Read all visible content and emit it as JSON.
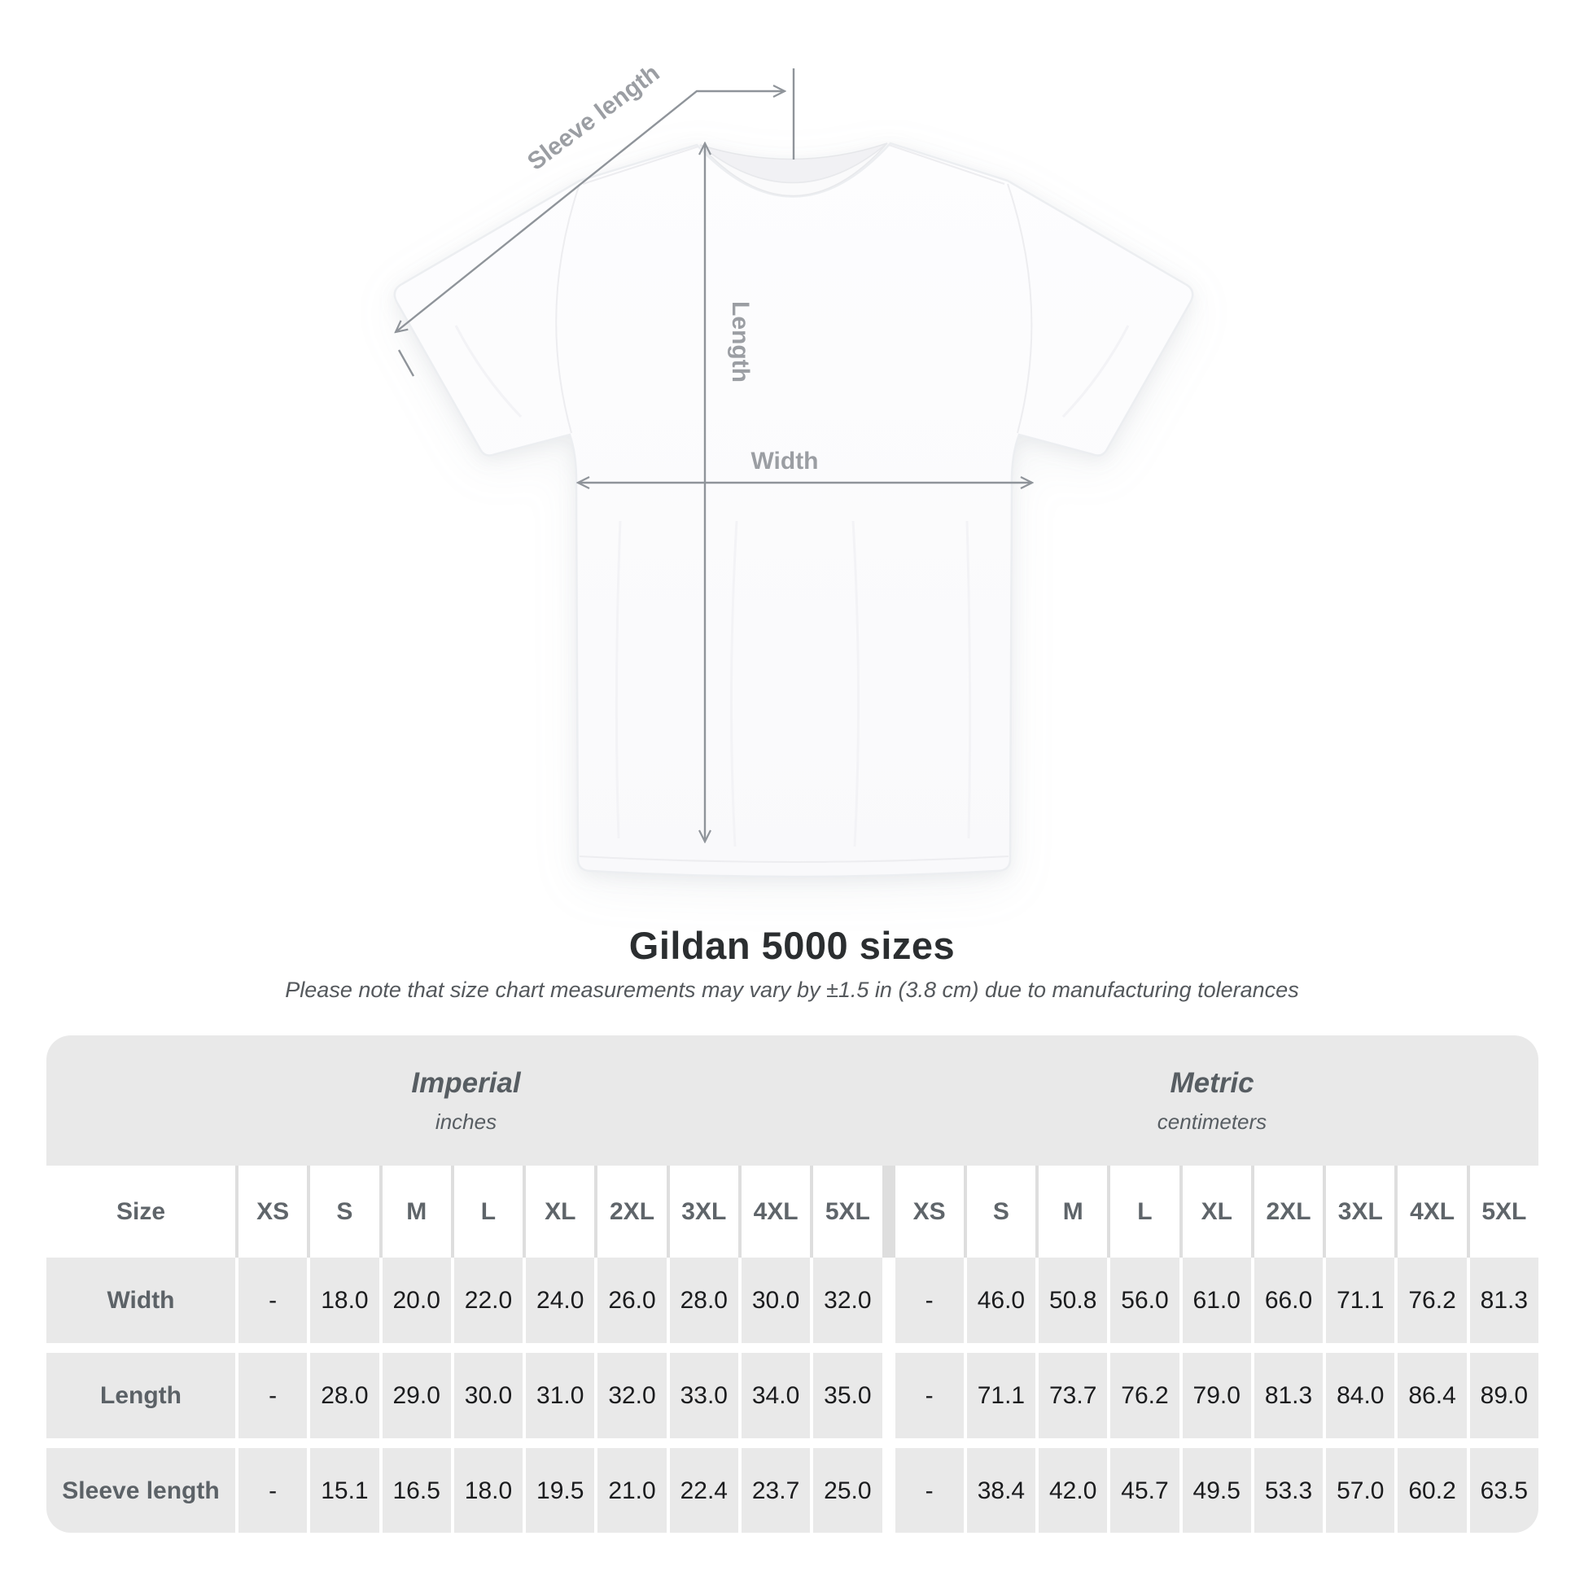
{
  "diagram": {
    "sleeve_length_label": "Sleeve length",
    "length_label": "Length",
    "width_label": "Width"
  },
  "content": {
    "title": "Gildan 5000 sizes",
    "subtitle": "Please note that size chart measurements may vary by ±1.5 in (3.8 cm) due to manufacturing tolerances"
  },
  "table": {
    "group_headers": [
      {
        "system": "Imperial",
        "unit": "inches"
      },
      {
        "system": "Metric",
        "unit": "centimeters"
      }
    ],
    "size_column_header": "Size",
    "sizes": [
      "XS",
      "S",
      "M",
      "L",
      "XL",
      "2XL",
      "3XL",
      "4XL",
      "5XL"
    ],
    "rows": [
      {
        "label": "Width",
        "imperial": [
          "-",
          "18.0",
          "20.0",
          "22.0",
          "24.0",
          "26.0",
          "28.0",
          "30.0",
          "32.0"
        ],
        "metric": [
          "-",
          "46.0",
          "50.8",
          "56.0",
          "61.0",
          "66.0",
          "71.1",
          "76.2",
          "81.3"
        ]
      },
      {
        "label": "Length",
        "imperial": [
          "-",
          "28.0",
          "29.0",
          "30.0",
          "31.0",
          "32.0",
          "33.0",
          "34.0",
          "35.0"
        ],
        "metric": [
          "-",
          "71.1",
          "73.7",
          "76.2",
          "79.0",
          "81.3",
          "84.0",
          "86.4",
          "89.0"
        ]
      },
      {
        "label": "Sleeve length",
        "imperial": [
          "-",
          "15.1",
          "16.5",
          "18.0",
          "19.5",
          "21.0",
          "22.4",
          "23.7",
          "25.0"
        ],
        "metric": [
          "-",
          "38.4",
          "42.0",
          "45.7",
          "49.5",
          "53.3",
          "57.0",
          "60.2",
          "63.5"
        ]
      }
    ]
  },
  "colors": {
    "table_gray": "#e9e9e9",
    "header_text_gray": "#5c6267",
    "annotation_gray": "#9b9ea3",
    "arrow_gray": "#8f949a",
    "title_dark": "#2b2e30"
  }
}
